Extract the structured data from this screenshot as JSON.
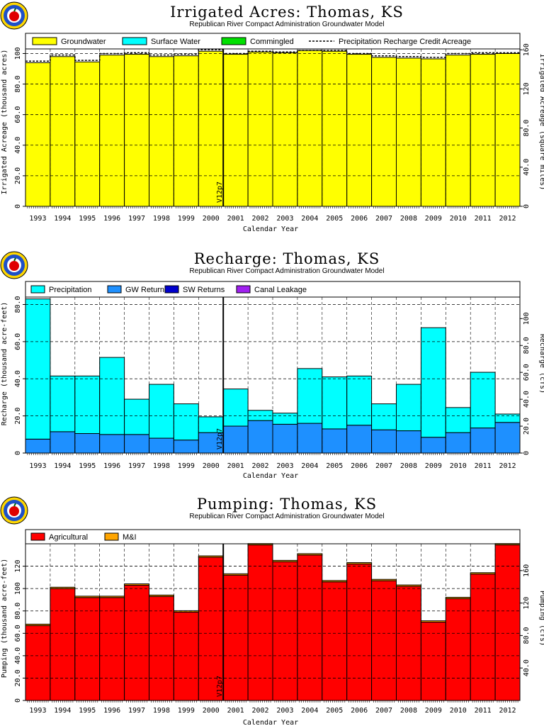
{
  "chart_data": [
    {
      "type": "bar",
      "title": "Irrigated  Acres:  Thomas,  KS",
      "subtitle": "Republican  River  Compact  Administration  Groundwater  Model",
      "xlabel": "Calendar  Year",
      "ylabel": "Irrigated  Acreage  (thousand  acres)",
      "ylabel_right": "Irrigated  Acreage  (square  miles)",
      "categories": [
        "1993",
        "1994",
        "1995",
        "1996",
        "1997",
        "1998",
        "1999",
        "2000",
        "2001",
        "2002",
        "2003",
        "2004",
        "2005",
        "2006",
        "2007",
        "2008",
        "2009",
        "2010",
        "2011",
        "2012"
      ],
      "ylim": [
        0,
        103
      ],
      "yticks": [
        0,
        20,
        40,
        60,
        80,
        100
      ],
      "ytick_labels": [
        "0",
        "20.0",
        "40.0",
        "60.0",
        "80.0",
        "100"
      ],
      "right_ylim": [
        0,
        160.9
      ],
      "right_yticks": [
        0,
        40,
        80,
        120,
        160
      ],
      "right_ytick_labels": [
        "0",
        "40.0",
        "80.0",
        "120",
        "160"
      ],
      "marker_year": "2001",
      "marker_label": "V12p7",
      "legend_position": "top",
      "series": [
        {
          "name": "Groundwater",
          "color": "#ffff00",
          "values": [
            94,
            98,
            94.5,
            99,
            99.5,
            98,
            98.5,
            101.5,
            99.5,
            101,
            100.5,
            102,
            101.5,
            99.5,
            97.5,
            97,
            96.5,
            99,
            99.5,
            100
          ]
        },
        {
          "name": "Surface  Water",
          "color": "#00ffff",
          "values": [
            0,
            0,
            0,
            0,
            0,
            0,
            0,
            0,
            0,
            0,
            0,
            0,
            0,
            0,
            0,
            0,
            0,
            0,
            0,
            0
          ]
        },
        {
          "name": "Commingled",
          "color": "#00e000",
          "values": [
            0,
            0,
            0,
            0,
            0,
            0,
            0,
            0,
            0,
            0,
            0,
            0,
            0,
            0,
            0,
            0,
            0,
            0,
            0,
            0
          ]
        }
      ],
      "line_series": {
        "name": "Precipitation  Recharge  Credit  Acreage",
        "values": [
          95,
          99,
          95.5,
          100,
          100.5,
          99,
          99.5,
          102.5,
          100,
          101.5,
          101,
          102,
          102,
          100,
          98.5,
          98,
          97.5,
          100,
          100.5,
          100.5
        ]
      }
    },
    {
      "type": "bar",
      "title": "Recharge:  Thomas,  KS",
      "subtitle": "Republican  River  Compact  Administration  Groundwater  Model",
      "xlabel": "Calendar  Year",
      "ylabel": "Recharge  (thousand  acre-feet)",
      "ylabel_right": "Recharge  (cfs)",
      "categories": [
        "1993",
        "1994",
        "1995",
        "1996",
        "1997",
        "1998",
        "1999",
        "2000",
        "2001",
        "2002",
        "2003",
        "2004",
        "2005",
        "2006",
        "2007",
        "2008",
        "2009",
        "2010",
        "2011",
        "2012"
      ],
      "ylim": [
        0,
        84
      ],
      "yticks": [
        0,
        20,
        40,
        60,
        80
      ],
      "ytick_labels": [
        "0",
        "20.0",
        "40.0",
        "60.0",
        "80.0"
      ],
      "right_ylim": [
        0,
        116
      ],
      "right_yticks": [
        0,
        20,
        40,
        60,
        80,
        100
      ],
      "right_ytick_labels": [
        "0",
        "20.0",
        "40.0",
        "60.0",
        "80.0",
        "100"
      ],
      "marker_year": "2001",
      "marker_label": "V12p7",
      "legend_position": "top",
      "series": [
        {
          "name": "GW  Returns",
          "color": "#1e90ff",
          "values": [
            7.5,
            11.5,
            10.5,
            10,
            10,
            8,
            7,
            11,
            14.5,
            17.5,
            15.5,
            16,
            13,
            15,
            12.5,
            12,
            8.5,
            11,
            13.5,
            16.5
          ]
        },
        {
          "name": "SW  Returns",
          "color": "#0000cd",
          "values": [
            0,
            0,
            0,
            0,
            0,
            0,
            0,
            0,
            0,
            0,
            0,
            0,
            0,
            0,
            0,
            0,
            0,
            0,
            0,
            0
          ]
        },
        {
          "name": "Canal  Leakage",
          "color": "#a020f0",
          "values": [
            0,
            0,
            0,
            0,
            0,
            0,
            0,
            0,
            0,
            0,
            0,
            0,
            0,
            0,
            0,
            0,
            0,
            0,
            0,
            0
          ]
        },
        {
          "name": "Precipitation",
          "color": "#00ffff",
          "values": [
            75.5,
            30,
            31,
            41.5,
            19,
            29,
            19.5,
            8.5,
            20,
            5.5,
            6,
            29.5,
            28,
            26.5,
            14,
            25,
            59,
            13.5,
            30,
            4.5
          ]
        }
      ]
    },
    {
      "type": "bar",
      "title": "Pumping:  Thomas,  KS",
      "subtitle": "Republican  River  Compact  Administration  Groundwater  Model",
      "xlabel": "Calendar  Year",
      "ylabel": "Pumping  (thousand  acre-feet)",
      "ylabel_right": "Pumping  (cfs)",
      "categories": [
        "1993",
        "1994",
        "1995",
        "1996",
        "1997",
        "1998",
        "1999",
        "2000",
        "2001",
        "2002",
        "2003",
        "2004",
        "2005",
        "2006",
        "2007",
        "2008",
        "2009",
        "2010",
        "2011",
        "2012"
      ],
      "ylim": [
        0,
        140
      ],
      "yticks": [
        0,
        20,
        40,
        60,
        80,
        100,
        120
      ],
      "ytick_labels": [
        "0",
        "20.0",
        "40.0",
        "60.0",
        "80.0",
        "100",
        "120"
      ],
      "right_ylim": [
        0,
        193
      ],
      "right_yticks": [
        40,
        80,
        120,
        160
      ],
      "right_ytick_labels": [
        "40.0",
        "80.0",
        "120",
        "160"
      ],
      "marker_year": "2001",
      "marker_label": "V12p7",
      "legend_position": "top",
      "series": [
        {
          "name": "Agricultural",
          "color": "#ff0000",
          "values": [
            67,
            100,
            92,
            92,
            103,
            93,
            79,
            128,
            112,
            139,
            124,
            130,
            106,
            122,
            107,
            102,
            70,
            91,
            113,
            139
          ]
        },
        {
          "name": "M&I",
          "color": "#ffa500",
          "values": [
            1.2,
            1.2,
            1.2,
            1.2,
            1.2,
            1.2,
            1.2,
            1.2,
            1.2,
            1.2,
            1.2,
            1.2,
            1.2,
            1.2,
            1.2,
            1.2,
            1.2,
            1.2,
            1.2,
            1.2
          ]
        }
      ]
    }
  ]
}
